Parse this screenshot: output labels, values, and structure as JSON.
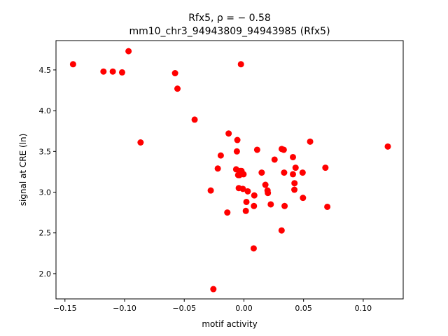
{
  "chart_data": {
    "type": "scatter",
    "title_line1": "Rfx5, ρ = − 0.58",
    "title_line2": "mm10_chr3_94943809_94943985 (Rfx5)",
    "xlabel": "motif activity",
    "ylabel": "signal at CRE (ln)",
    "xlim": [
      -0.1575,
      0.1335
    ],
    "ylim": [
      1.69,
      4.86
    ],
    "xticks": [
      {
        "value": -0.15,
        "label": "−0.15"
      },
      {
        "value": -0.1,
        "label": "−0.10"
      },
      {
        "value": -0.05,
        "label": "−0.05"
      },
      {
        "value": 0.0,
        "label": "0.00"
      },
      {
        "value": 0.05,
        "label": "0.05"
      },
      {
        "value": 0.1,
        "label": "0.10"
      }
    ],
    "yticks": [
      {
        "value": 2.0,
        "label": "2.0"
      },
      {
        "value": 2.5,
        "label": "2.5"
      },
      {
        "value": 3.0,
        "label": "3.0"
      },
      {
        "value": 3.5,
        "label": "3.5"
      },
      {
        "value": 4.0,
        "label": "4.0"
      },
      {
        "value": 4.5,
        "label": "4.5"
      }
    ],
    "marker_color": "#ff0000",
    "points": [
      [
        -0.1432,
        4.57
      ],
      [
        -0.1177,
        4.48
      ],
      [
        -0.1099,
        4.48
      ],
      [
        -0.1021,
        4.47
      ],
      [
        -0.0967,
        4.73
      ],
      [
        -0.0866,
        3.61
      ],
      [
        -0.0577,
        4.46
      ],
      [
        -0.0557,
        4.27
      ],
      [
        -0.0413,
        3.89
      ],
      [
        -0.0278,
        3.02
      ],
      [
        -0.0256,
        1.81
      ],
      [
        -0.0219,
        3.29
      ],
      [
        -0.0194,
        3.45
      ],
      [
        -0.0139,
        2.75
      ],
      [
        -0.0128,
        3.72
      ],
      [
        -0.0055,
        3.64
      ],
      [
        -0.0059,
        3.5
      ],
      [
        -0.0065,
        3.28
      ],
      [
        -0.0048,
        3.21
      ],
      [
        -0.0043,
        3.05
      ],
      [
        -0.0037,
        3.21
      ],
      [
        -0.0031,
        3.26
      ],
      [
        -0.0025,
        4.57
      ],
      [
        -0.002,
        3.26
      ],
      [
        -0.0009,
        3.04
      ],
      [
        -0.0003,
        3.22
      ],
      [
        0.0016,
        2.77
      ],
      [
        0.0021,
        2.88
      ],
      [
        0.0032,
        3.01
      ],
      [
        0.0082,
        2.31
      ],
      [
        0.0084,
        2.83
      ],
      [
        0.0087,
        2.96
      ],
      [
        0.0111,
        3.52
      ],
      [
        0.0149,
        3.24
      ],
      [
        0.018,
        3.09
      ],
      [
        0.0198,
        3.02
      ],
      [
        0.0201,
        2.99
      ],
      [
        0.0225,
        2.85
      ],
      [
        0.0257,
        3.4
      ],
      [
        0.0316,
        2.53
      ],
      [
        0.0317,
        3.53
      ],
      [
        0.0334,
        3.52
      ],
      [
        0.0337,
        3.24
      ],
      [
        0.0341,
        2.83
      ],
      [
        0.0411,
        3.43
      ],
      [
        0.0411,
        3.22
      ],
      [
        0.0423,
        3.03
      ],
      [
        0.0424,
        3.11
      ],
      [
        0.0433,
        3.3
      ],
      [
        0.0492,
        3.24
      ],
      [
        0.0495,
        2.93
      ],
      [
        0.0555,
        3.62
      ],
      [
        0.0683,
        3.3
      ],
      [
        0.0699,
        2.82
      ],
      [
        0.1206,
        3.56
      ]
    ]
  }
}
